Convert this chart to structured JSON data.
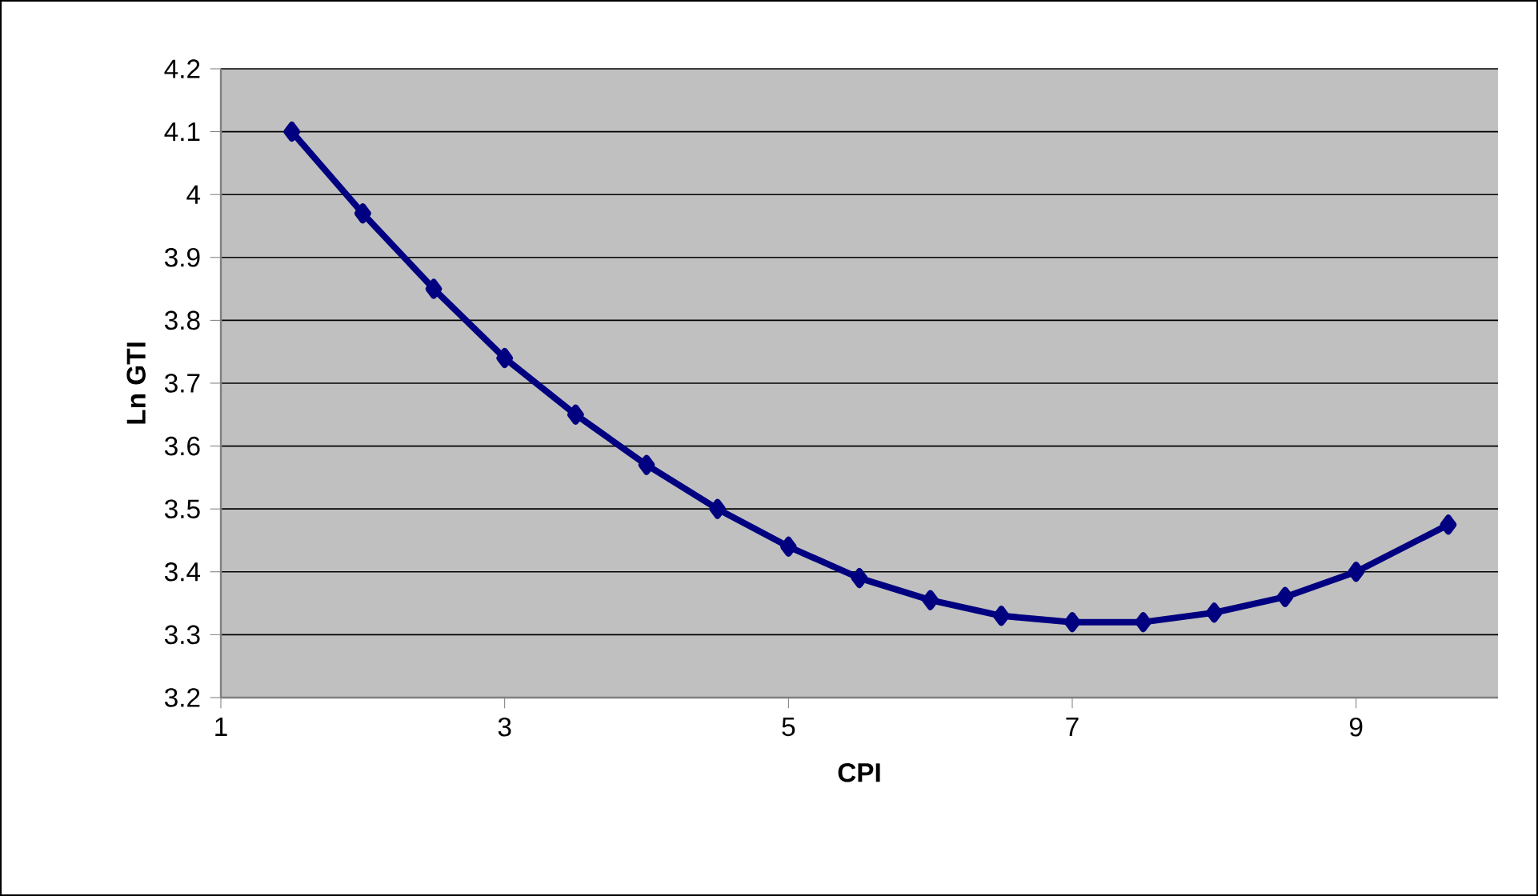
{
  "chart_data": {
    "type": "line",
    "xlabel": "CPI",
    "ylabel": "Ln GTI",
    "x": [
      1.5,
      2,
      2.5,
      3,
      3.5,
      4,
      4.5,
      5,
      5.5,
      6,
      6.5,
      7,
      7.5,
      8,
      8.5,
      9,
      9.65
    ],
    "series": [
      {
        "color": "#000080",
        "values": [
          4.1,
          3.97,
          3.85,
          3.74,
          3.65,
          3.57,
          3.5,
          3.44,
          3.39,
          3.355,
          3.33,
          3.32,
          3.32,
          3.335,
          3.36,
          3.4,
          3.475
        ]
      }
    ],
    "xlim": [
      1,
      10
    ],
    "xticks": [
      1,
      3,
      5,
      7,
      9
    ],
    "ylim": [
      3.2,
      4.2
    ],
    "yticks": [
      3.2,
      3.3,
      3.4,
      3.5,
      3.6,
      3.7,
      3.8,
      3.9,
      4,
      4.1,
      4.2
    ],
    "grid": "y",
    "marker": "diamond",
    "line_style": "solid"
  }
}
